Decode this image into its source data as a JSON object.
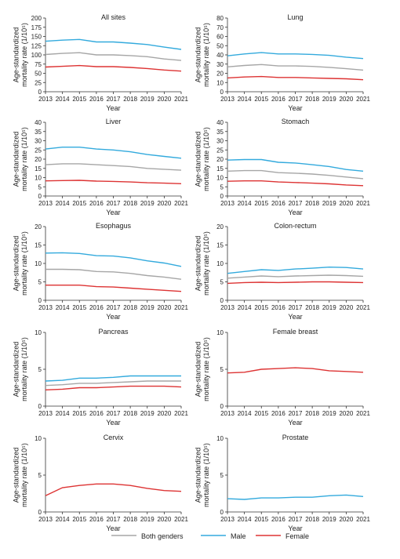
{
  "x_label": "Year",
  "y_label_line1": "Age-standardized",
  "y_label_line2": "mortality rate (1/10⁵)",
  "legend": [
    {
      "name": "Both genders",
      "color": "#a6a6a6"
    },
    {
      "name": "Male",
      "color": "#33aadd"
    },
    {
      "name": "Female",
      "color": "#dd3333"
    }
  ],
  "chart_data": [
    {
      "type": "line",
      "title": "All sites",
      "x": [
        2013,
        2014,
        2015,
        2016,
        2017,
        2018,
        2019,
        2020,
        2021
      ],
      "ylim": [
        0,
        200
      ],
      "yticks": [
        0,
        25,
        50,
        75,
        100,
        125,
        150,
        175,
        200
      ],
      "series": [
        {
          "name": "Both genders",
          "values": [
            101,
            104,
            106,
            100,
            100,
            98,
            95,
            89,
            85
          ]
        },
        {
          "name": "Male",
          "values": [
            137,
            140,
            142,
            135,
            135,
            132,
            128,
            121,
            115
          ]
        },
        {
          "name": "Female",
          "values": [
            67,
            69,
            71,
            68,
            68,
            66,
            63,
            59,
            56
          ]
        }
      ]
    },
    {
      "type": "line",
      "title": "Lung",
      "x": [
        2013,
        2014,
        2015,
        2016,
        2017,
        2018,
        2019,
        2020,
        2021
      ],
      "ylim": [
        0,
        80
      ],
      "yticks": [
        0,
        10,
        20,
        30,
        40,
        50,
        60,
        70,
        80
      ],
      "series": [
        {
          "name": "Both genders",
          "values": [
            27,
            28.5,
            29.5,
            28,
            28,
            27.5,
            26.5,
            25,
            23.5
          ]
        },
        {
          "name": "Male",
          "values": [
            39,
            41,
            42.5,
            41,
            41,
            40.5,
            39.5,
            37.5,
            36
          ]
        },
        {
          "name": "Female",
          "values": [
            15,
            16,
            16.5,
            15.5,
            15.5,
            15,
            14.5,
            14,
            13
          ]
        }
      ]
    },
    {
      "type": "line",
      "title": "Liver",
      "x": [
        2013,
        2014,
        2015,
        2016,
        2017,
        2018,
        2019,
        2020,
        2021
      ],
      "ylim": [
        0,
        40
      ],
      "yticks": [
        0,
        5,
        10,
        15,
        20,
        25,
        30,
        35,
        40
      ],
      "series": [
        {
          "name": "Both genders",
          "values": [
            17,
            17.5,
            17.5,
            17,
            16.5,
            16,
            15,
            14.5,
            14
          ]
        },
        {
          "name": "Male",
          "values": [
            25.5,
            26.5,
            26.5,
            25.5,
            25,
            24,
            22.5,
            21.5,
            20.5
          ]
        },
        {
          "name": "Female",
          "values": [
            8.2,
            8.4,
            8.5,
            8.1,
            7.9,
            7.6,
            7.2,
            7,
            6.7
          ]
        }
      ]
    },
    {
      "type": "line",
      "title": "Stomach",
      "x": [
        2013,
        2014,
        2015,
        2016,
        2017,
        2018,
        2019,
        2020,
        2021
      ],
      "ylim": [
        0,
        40
      ],
      "yticks": [
        0,
        5,
        10,
        15,
        20,
        25,
        30,
        35,
        40
      ],
      "series": [
        {
          "name": "Both genders",
          "values": [
            13.5,
            13.8,
            13.8,
            12.7,
            12.4,
            11.9,
            11.2,
            10.3,
            9.4
          ]
        },
        {
          "name": "Male",
          "values": [
            19.5,
            19.8,
            19.8,
            18.3,
            17.9,
            17,
            16,
            14.4,
            13.5
          ]
        },
        {
          "name": "Female",
          "values": [
            8,
            8.2,
            8.2,
            7.6,
            7.3,
            7,
            6.6,
            6,
            5.6
          ]
        }
      ]
    },
    {
      "type": "line",
      "title": "Esophagus",
      "x": [
        2013,
        2014,
        2015,
        2016,
        2017,
        2018,
        2019,
        2020,
        2021
      ],
      "ylim": [
        0,
        20
      ],
      "yticks": [
        0,
        5,
        10,
        15,
        20
      ],
      "series": [
        {
          "name": "Both genders",
          "values": [
            8.4,
            8.4,
            8.3,
            7.8,
            7.7,
            7.3,
            6.7,
            6.3,
            5.7
          ]
        },
        {
          "name": "Male",
          "values": [
            12.8,
            12.9,
            12.7,
            12.1,
            12,
            11.5,
            10.7,
            10.1,
            9.2
          ]
        },
        {
          "name": "Female",
          "values": [
            4.1,
            4.1,
            4.1,
            3.7,
            3.6,
            3.3,
            3,
            2.7,
            2.4
          ]
        }
      ]
    },
    {
      "type": "line",
      "title": "Colon-rectum",
      "x": [
        2013,
        2014,
        2015,
        2016,
        2017,
        2018,
        2019,
        2020,
        2021
      ],
      "ylim": [
        0,
        20
      ],
      "yticks": [
        0,
        5,
        10,
        15,
        20
      ],
      "series": [
        {
          "name": "Both genders",
          "values": [
            6,
            6.3,
            6.6,
            6.4,
            6.6,
            6.7,
            6.8,
            6.7,
            6.5
          ]
        },
        {
          "name": "Male",
          "values": [
            7.3,
            7.8,
            8.3,
            8.1,
            8.5,
            8.7,
            9,
            8.9,
            8.5
          ]
        },
        {
          "name": "Female",
          "values": [
            4.6,
            4.8,
            4.9,
            4.8,
            4.9,
            5,
            5,
            4.9,
            4.8
          ]
        }
      ]
    },
    {
      "type": "line",
      "title": "Pancreas",
      "x": [
        2013,
        2014,
        2015,
        2016,
        2017,
        2018,
        2019,
        2020,
        2021
      ],
      "ylim": [
        0,
        10
      ],
      "yticks": [
        0,
        5,
        10
      ],
      "series": [
        {
          "name": "Both genders",
          "values": [
            2.8,
            2.9,
            3.1,
            3.1,
            3.2,
            3.3,
            3.4,
            3.4,
            3.4
          ]
        },
        {
          "name": "Male",
          "values": [
            3.4,
            3.5,
            3.8,
            3.8,
            3.9,
            4.1,
            4.1,
            4.1,
            4.1
          ]
        },
        {
          "name": "Female",
          "values": [
            2.2,
            2.3,
            2.5,
            2.5,
            2.6,
            2.7,
            2.7,
            2.7,
            2.6
          ]
        }
      ]
    },
    {
      "type": "line",
      "title": "Female breast",
      "x": [
        2013,
        2014,
        2015,
        2016,
        2017,
        2018,
        2019,
        2020,
        2021
      ],
      "ylim": [
        0,
        10
      ],
      "yticks": [
        0,
        5,
        10
      ],
      "series": [
        {
          "name": "Female",
          "values": [
            4.5,
            4.6,
            5,
            5.1,
            5.2,
            5.1,
            4.8,
            4.7,
            4.6
          ]
        }
      ]
    },
    {
      "type": "line",
      "title": "Cervix",
      "x": [
        2013,
        2014,
        2015,
        2016,
        2017,
        2018,
        2019,
        2020,
        2021
      ],
      "ylim": [
        0,
        10
      ],
      "yticks": [
        0,
        5,
        10
      ],
      "series": [
        {
          "name": "Female",
          "values": [
            2.2,
            3.3,
            3.6,
            3.8,
            3.8,
            3.6,
            3.2,
            2.9,
            2.8
          ]
        }
      ]
    },
    {
      "type": "line",
      "title": "Prostate",
      "x": [
        2013,
        2014,
        2015,
        2016,
        2017,
        2018,
        2019,
        2020,
        2021
      ],
      "ylim": [
        0,
        10
      ],
      "yticks": [
        0,
        5,
        10
      ],
      "series": [
        {
          "name": "Male",
          "values": [
            1.8,
            1.7,
            1.9,
            1.9,
            2,
            2,
            2.2,
            2.3,
            2.1
          ]
        }
      ]
    }
  ]
}
